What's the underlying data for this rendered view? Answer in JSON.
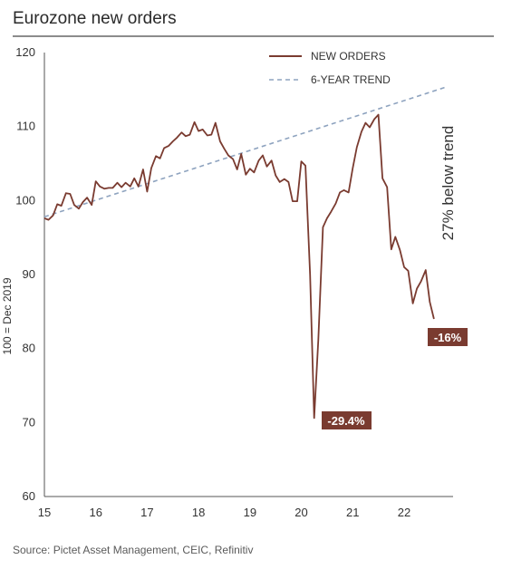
{
  "title": "Eurozone new orders",
  "source": "Source: Pictet Asset Management, CEIC, Refinitiv",
  "colors": {
    "orders": "#7a3b30",
    "trend": "#8ea3bf",
    "label_bg": "#7a3b30",
    "axis": "#555555"
  },
  "chart_data": {
    "type": "line",
    "title": "Eurozone new orders",
    "ylabel": "100 = Dec 2019",
    "xlabel": "",
    "ylim": [
      60,
      120
    ],
    "xlim": [
      2015,
      2022.9
    ],
    "yticks": [
      60,
      70,
      80,
      90,
      100,
      110,
      120
    ],
    "ytick_labels": [
      "60",
      "70",
      "80",
      "90",
      "100",
      "110",
      "120"
    ],
    "xticks": [
      2015,
      2016,
      2017,
      2018,
      2019,
      2020,
      2021,
      2022
    ],
    "xtick_labels": [
      "15",
      "16",
      "17",
      "18",
      "19",
      "20",
      "21",
      "22"
    ],
    "legend": {
      "position": "top-right",
      "entries": [
        "NEW ORDERS",
        "6-YEAR TREND"
      ]
    },
    "series": [
      {
        "name": "NEW ORDERS",
        "style": "solid",
        "x": [
          2015.0,
          2015.08,
          2015.17,
          2015.25,
          2015.33,
          2015.42,
          2015.5,
          2015.58,
          2015.67,
          2015.75,
          2015.83,
          2015.92,
          2016.0,
          2016.08,
          2016.17,
          2016.25,
          2016.33,
          2016.42,
          2016.5,
          2016.58,
          2016.67,
          2016.75,
          2016.83,
          2016.92,
          2017.0,
          2017.08,
          2017.17,
          2017.25,
          2017.33,
          2017.42,
          2017.5,
          2017.58,
          2017.67,
          2017.75,
          2017.83,
          2017.92,
          2018.0,
          2018.08,
          2018.17,
          2018.25,
          2018.33,
          2018.42,
          2018.5,
          2018.58,
          2018.67,
          2018.75,
          2018.83,
          2018.92,
          2019.0,
          2019.08,
          2019.17,
          2019.25,
          2019.33,
          2019.42,
          2019.5,
          2019.58,
          2019.67,
          2019.75,
          2019.83,
          2019.92,
          2020.0,
          2020.08,
          2020.17,
          2020.25,
          2020.33,
          2020.42,
          2020.5,
          2020.58,
          2020.67,
          2020.75,
          2020.83,
          2020.92,
          2021.0,
          2021.08,
          2021.17,
          2021.25,
          2021.33,
          2021.42,
          2021.5,
          2021.58,
          2021.67,
          2021.75,
          2021.83,
          2021.92,
          2022.0,
          2022.08,
          2022.17,
          2022.25,
          2022.33,
          2022.42,
          2022.5,
          2022.58
        ],
        "values": [
          97.6,
          97.4,
          98.0,
          99.5,
          99.3,
          101.0,
          100.9,
          99.4,
          98.9,
          99.8,
          100.4,
          99.4,
          102.6,
          101.9,
          101.6,
          101.7,
          101.7,
          102.4,
          101.8,
          102.4,
          101.9,
          103.0,
          101.9,
          104.2,
          101.2,
          104.4,
          106.0,
          105.7,
          107.1,
          107.4,
          108.0,
          108.5,
          109.2,
          108.7,
          108.9,
          110.6,
          109.4,
          109.6,
          108.8,
          108.9,
          110.5,
          108.0,
          107.0,
          106.1,
          105.6,
          104.2,
          106.3,
          103.5,
          104.3,
          103.8,
          105.4,
          106.1,
          104.6,
          105.4,
          103.4,
          102.5,
          102.9,
          102.5,
          99.9,
          99.9,
          105.3,
          104.7,
          90.0,
          70.6,
          81.2,
          96.4,
          97.6,
          98.5,
          99.6,
          101.1,
          101.4,
          101.1,
          104.4,
          107.2,
          109.3,
          110.5,
          109.9,
          111.0,
          111.6,
          103.0,
          101.8,
          93.4,
          95.1,
          93.3,
          91.0,
          90.5,
          86.1,
          88.1,
          89.1,
          90.6,
          86.3,
          84.0
        ]
      },
      {
        "name": "6-YEAR TREND",
        "style": "dashed",
        "x": [
          2015.0,
          2022.8
        ],
        "values": [
          97.8,
          115.3
        ]
      }
    ],
    "annotations": [
      {
        "text": "-29.4%",
        "x": 2020.25,
        "y": 70.6
      },
      {
        "text": "-16%",
        "x": 2022.58,
        "y": 84.0
      },
      {
        "text": "27% below trend",
        "orientation": "vertical"
      }
    ]
  }
}
